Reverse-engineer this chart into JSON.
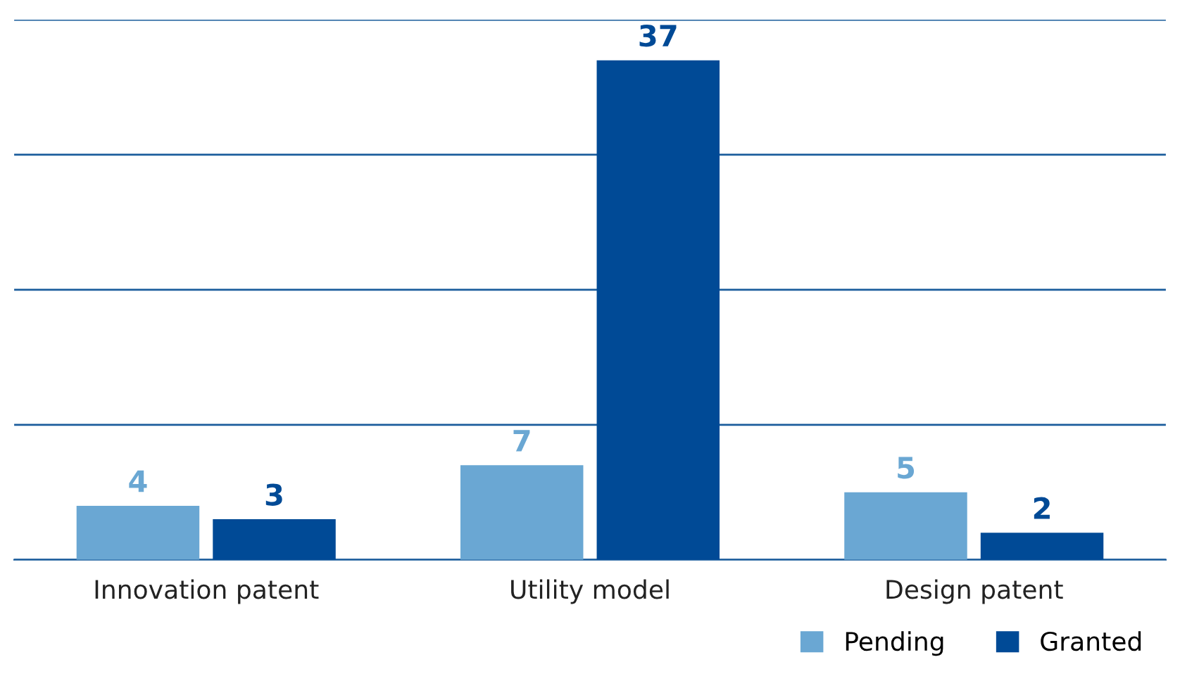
{
  "chart_data": {
    "type": "bar",
    "categories": [
      "Innovation patent",
      "Utility model",
      "Design patent"
    ],
    "series": [
      {
        "name": "Pending",
        "color": "#6aa7d3",
        "values": [
          4,
          7,
          5
        ]
      },
      {
        "name": "Granted",
        "color": "#004a96",
        "values": [
          3,
          37,
          2
        ]
      }
    ],
    "ylim": [
      0,
      40
    ],
    "yticks": [
      {
        "value": 0,
        "label": null
      },
      {
        "value": 10,
        "label": null
      },
      {
        "value": 20,
        "label": null
      },
      {
        "value": 30,
        "label": null
      },
      {
        "value": 40,
        "label": null
      }
    ],
    "tick_labels": "x",
    "grid": "y",
    "data_labels": true,
    "legend": "bottom right"
  }
}
